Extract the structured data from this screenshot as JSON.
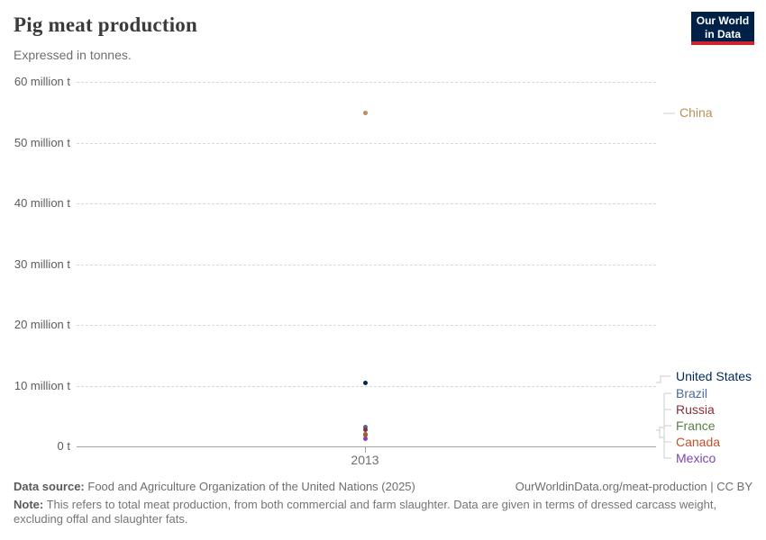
{
  "header": {
    "title": "Pig meat production",
    "subtitle": "Expressed in tonnes.",
    "logo_line1": "Our World",
    "logo_line2": "in Data"
  },
  "chart_data": {
    "type": "scatter",
    "title": "Pig meat production",
    "unit": "tonnes",
    "x": [
      2013
    ],
    "x_tick_label": "2013",
    "ylim": [
      0,
      60000000
    ],
    "grid": "horizontal-dashed",
    "y_ticks": [
      {
        "value_million": 60,
        "label": "60 million t"
      },
      {
        "value_million": 50,
        "label": "50 million t"
      },
      {
        "value_million": 40,
        "label": "40 million t"
      },
      {
        "value_million": 30,
        "label": "30 million t"
      },
      {
        "value_million": 20,
        "label": "20 million t"
      },
      {
        "value_million": 10,
        "label": "10 million t"
      },
      {
        "value_million": 0,
        "label": "0 t"
      }
    ],
    "legend_position": "right",
    "series": [
      {
        "name": "China",
        "year": 2013,
        "value_million_t": 54.9,
        "color": "#BC8E5A"
      },
      {
        "name": "United States",
        "year": 2013,
        "value_million_t": 10.5,
        "color": "#00295B"
      },
      {
        "name": "Brazil",
        "year": 2013,
        "value_million_t": 3.3,
        "color": "#4C6A9C"
      },
      {
        "name": "Russia",
        "year": 2013,
        "value_million_t": 2.8,
        "color": "#883039"
      },
      {
        "name": "France",
        "year": 2013,
        "value_million_t": 2.1,
        "color": "#578145"
      },
      {
        "name": "Canada",
        "year": 2013,
        "value_million_t": 1.9,
        "color": "#C0512F"
      },
      {
        "name": "Mexico",
        "year": 2013,
        "value_million_t": 1.3,
        "color": "#7E46B2"
      }
    ]
  },
  "footer": {
    "datasource_label": "Data source:",
    "datasource_value": "Food and Agriculture Organization of the United Nations (2025)",
    "license": "OurWorldinData.org/meat-production | CC BY",
    "note_label": "Note:",
    "note_value": "This refers to total meat production, from both commercial and farm slaughter. Data are given in terms of dressed carcass weight, excluding offal and slaughter fats."
  }
}
